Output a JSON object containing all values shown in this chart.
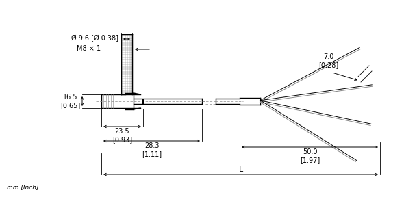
{
  "bg_color": "#ffffff",
  "line_color": "#000000",
  "gray": "#888888",
  "annotations": {
    "diameter": "Ø 9.6 [Ø 0.38]",
    "thread": "M8 × 1",
    "dim_h": "16.5\n[0.65]",
    "dim1": "23.5\n[0.93]",
    "dim2": "28.3\n[1.11]",
    "L": "L",
    "tip_diam": "7.0\n[0.28]",
    "tip_len": "50.0\n[1.97]",
    "unit": "mm [Inch]"
  },
  "figsize": [
    5.9,
    2.88
  ],
  "dpi": 100
}
